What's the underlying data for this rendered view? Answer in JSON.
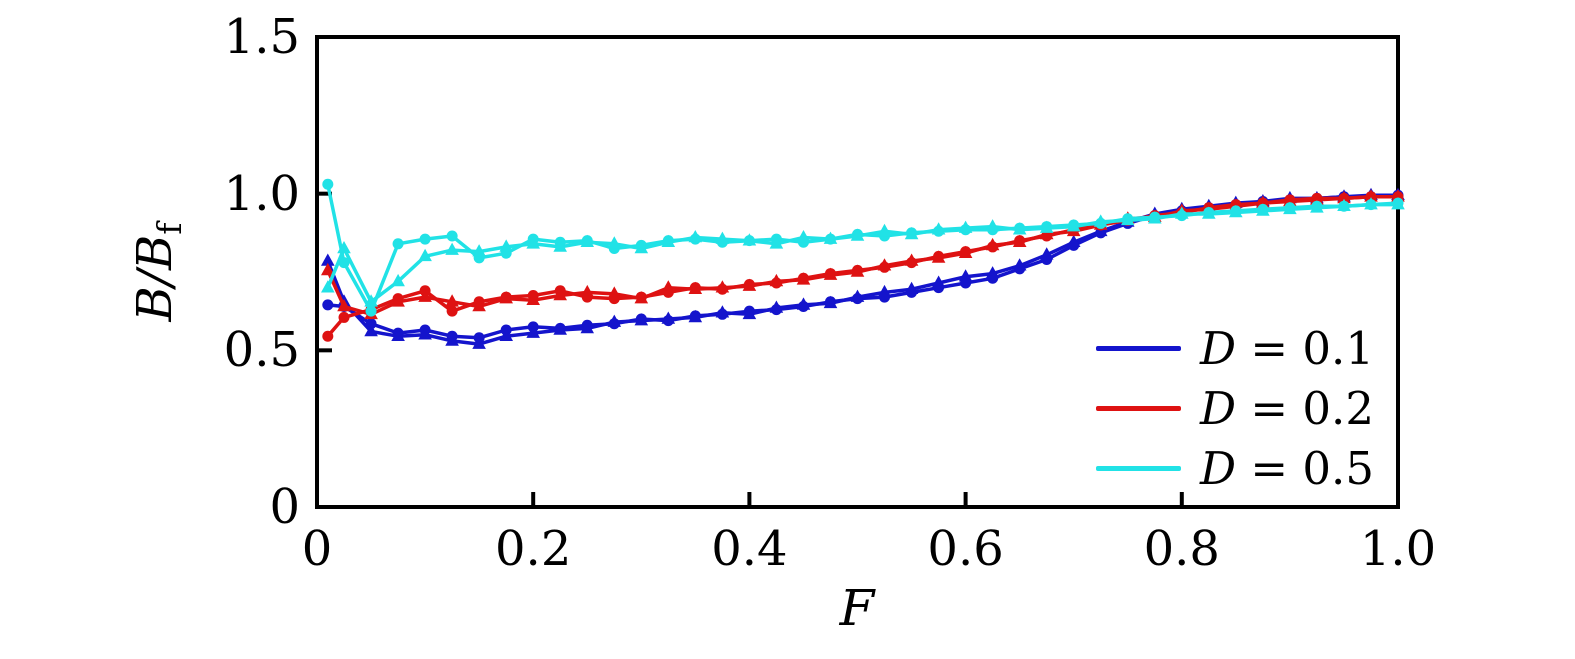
{
  "figure": {
    "background": "#ffffff",
    "axis_color": "#000000"
  },
  "chart_data": {
    "type": "line",
    "title": "",
    "xlabel": "F",
    "ylabel_numerator": "B/B",
    "ylabel_subscript": "f",
    "ylabel_full": "B/B_f",
    "xlim": [
      0,
      1.0
    ],
    "ylim": [
      0,
      1.5
    ],
    "grid": false,
    "x_tick_values": [
      0,
      0.2,
      0.4,
      0.6,
      0.8,
      1.0
    ],
    "x_tick_labels": [
      "0",
      "0.2",
      "0.4",
      "0.6",
      "0.8",
      "1.0"
    ],
    "y_tick_values": [
      0,
      0.5,
      1.0,
      1.5
    ],
    "y_tick_labels": [
      "0",
      "0.5",
      "1.0",
      "1.5"
    ],
    "x": [
      0.01,
      0.025,
      0.05,
      0.075,
      0.1,
      0.125,
      0.15,
      0.175,
      0.2,
      0.225,
      0.25,
      0.275,
      0.3,
      0.325,
      0.35,
      0.375,
      0.4,
      0.425,
      0.45,
      0.475,
      0.5,
      0.525,
      0.55,
      0.575,
      0.6,
      0.625,
      0.65,
      0.675,
      0.7,
      0.725,
      0.75,
      0.775,
      0.8,
      0.825,
      0.85,
      0.875,
      0.9,
      0.925,
      0.95,
      0.975,
      1.0
    ],
    "series": [
      {
        "name": "D = 0.1 circles",
        "group": "D = 0.1",
        "color": "#1414CC",
        "marker": "circle",
        "values": [
          0.645,
          0.64,
          0.585,
          0.555,
          0.565,
          0.545,
          0.54,
          0.565,
          0.575,
          0.57,
          0.58,
          0.585,
          0.6,
          0.595,
          0.61,
          0.615,
          0.625,
          0.63,
          0.64,
          0.655,
          0.665,
          0.67,
          0.685,
          0.7,
          0.715,
          0.73,
          0.76,
          0.79,
          0.835,
          0.875,
          0.905,
          0.93,
          0.945,
          0.955,
          0.965,
          0.975,
          0.98,
          0.985,
          0.99,
          0.99,
          0.995
        ]
      },
      {
        "name": "D = 0.1 triangles",
        "group": "D = 0.1",
        "color": "#1414CC",
        "marker": "triangle",
        "values": [
          0.785,
          0.655,
          0.56,
          0.545,
          0.55,
          0.53,
          0.52,
          0.545,
          0.555,
          0.565,
          0.57,
          0.59,
          0.595,
          0.6,
          0.605,
          0.62,
          0.615,
          0.635,
          0.645,
          0.65,
          0.67,
          0.685,
          0.695,
          0.715,
          0.735,
          0.745,
          0.77,
          0.805,
          0.845,
          0.88,
          0.91,
          0.935,
          0.95,
          0.96,
          0.97,
          0.975,
          0.985,
          0.985,
          0.99,
          0.995,
          0.995
        ]
      },
      {
        "name": "D = 0.2 circles",
        "group": "D = 0.2",
        "color": "#DE1212",
        "marker": "circle",
        "values": [
          0.545,
          0.605,
          0.63,
          0.665,
          0.69,
          0.625,
          0.655,
          0.67,
          0.675,
          0.69,
          0.67,
          0.665,
          0.67,
          0.685,
          0.7,
          0.695,
          0.71,
          0.715,
          0.73,
          0.745,
          0.755,
          0.765,
          0.78,
          0.8,
          0.815,
          0.83,
          0.85,
          0.865,
          0.885,
          0.9,
          0.915,
          0.93,
          0.94,
          0.955,
          0.965,
          0.97,
          0.98,
          0.985,
          0.985,
          0.99,
          0.99
        ]
      },
      {
        "name": "D = 0.2 triangles",
        "group": "D = 0.2",
        "color": "#DE1212",
        "marker": "triangle",
        "values": [
          0.755,
          0.64,
          0.615,
          0.655,
          0.67,
          0.655,
          0.64,
          0.665,
          0.66,
          0.675,
          0.685,
          0.68,
          0.665,
          0.7,
          0.695,
          0.7,
          0.705,
          0.72,
          0.725,
          0.74,
          0.75,
          0.77,
          0.785,
          0.795,
          0.81,
          0.835,
          0.845,
          0.87,
          0.88,
          0.9,
          0.92,
          0.925,
          0.945,
          0.95,
          0.96,
          0.97,
          0.975,
          0.98,
          0.985,
          0.99,
          0.99
        ]
      },
      {
        "name": "D = 0.5 circles",
        "group": "D = 0.5",
        "color": "#21E2E6",
        "marker": "circle",
        "values": [
          1.03,
          0.78,
          0.625,
          0.84,
          0.855,
          0.865,
          0.795,
          0.81,
          0.855,
          0.845,
          0.85,
          0.825,
          0.835,
          0.85,
          0.855,
          0.845,
          0.85,
          0.855,
          0.845,
          0.855,
          0.87,
          0.865,
          0.875,
          0.88,
          0.885,
          0.885,
          0.89,
          0.895,
          0.9,
          0.905,
          0.92,
          0.925,
          0.93,
          0.94,
          0.945,
          0.95,
          0.955,
          0.96,
          0.96,
          0.965,
          0.97
        ]
      },
      {
        "name": "D = 0.5 triangles",
        "group": "D = 0.5",
        "color": "#21E2E6",
        "marker": "triangle",
        "values": [
          0.7,
          0.825,
          0.655,
          0.72,
          0.8,
          0.82,
          0.815,
          0.83,
          0.84,
          0.83,
          0.845,
          0.84,
          0.825,
          0.845,
          0.86,
          0.855,
          0.85,
          0.84,
          0.86,
          0.855,
          0.865,
          0.88,
          0.87,
          0.885,
          0.89,
          0.895,
          0.885,
          0.89,
          0.895,
          0.91,
          0.915,
          0.92,
          0.935,
          0.935,
          0.94,
          0.945,
          0.95,
          0.955,
          0.96,
          0.965,
          0.965
        ]
      }
    ],
    "legend": {
      "position": "lower right",
      "entries": [
        {
          "var": "D",
          "eq": " = 0.1",
          "label": "D = 0.1",
          "color": "#1414CC"
        },
        {
          "var": "D",
          "eq": " = 0.2",
          "label": "D = 0.2",
          "color": "#DE1212"
        },
        {
          "var": "D",
          "eq": " = 0.5",
          "label": "D = 0.5",
          "color": "#21E2E6"
        }
      ]
    }
  }
}
